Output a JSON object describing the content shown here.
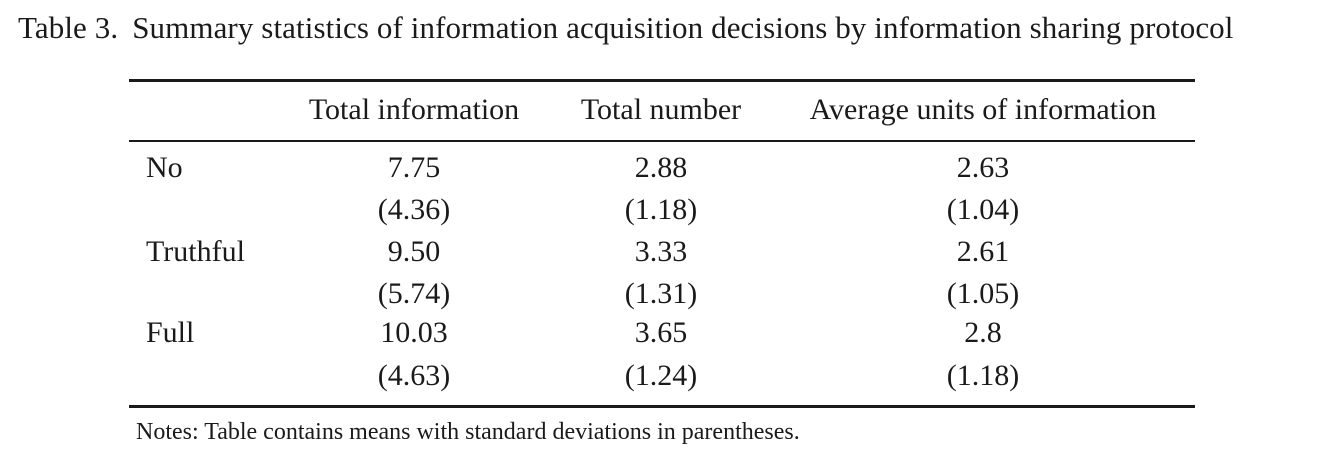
{
  "caption": {
    "label": "Table 3.",
    "text": "Summary statistics of information acquisition decisions by information sharing protocol"
  },
  "table": {
    "columns": [
      "Total information",
      "Total number",
      "Average units of information"
    ],
    "rows": [
      {
        "label": "No",
        "means": [
          "7.75",
          "2.88",
          "2.63"
        ],
        "sds": [
          "(4.36)",
          "(1.18)",
          "(1.04)"
        ]
      },
      {
        "label": "Truthful",
        "means": [
          "9.50",
          "3.33",
          "2.61"
        ],
        "sds": [
          "(5.74)",
          "(1.31)",
          "(1.05)"
        ]
      },
      {
        "label": "Full",
        "means": [
          "10.03",
          "3.65",
          "2.8"
        ],
        "sds": [
          "(4.63)",
          "(1.24)",
          "(1.18)"
        ]
      }
    ]
  },
  "notes": "Notes: Table contains means with standard deviations in parentheses."
}
